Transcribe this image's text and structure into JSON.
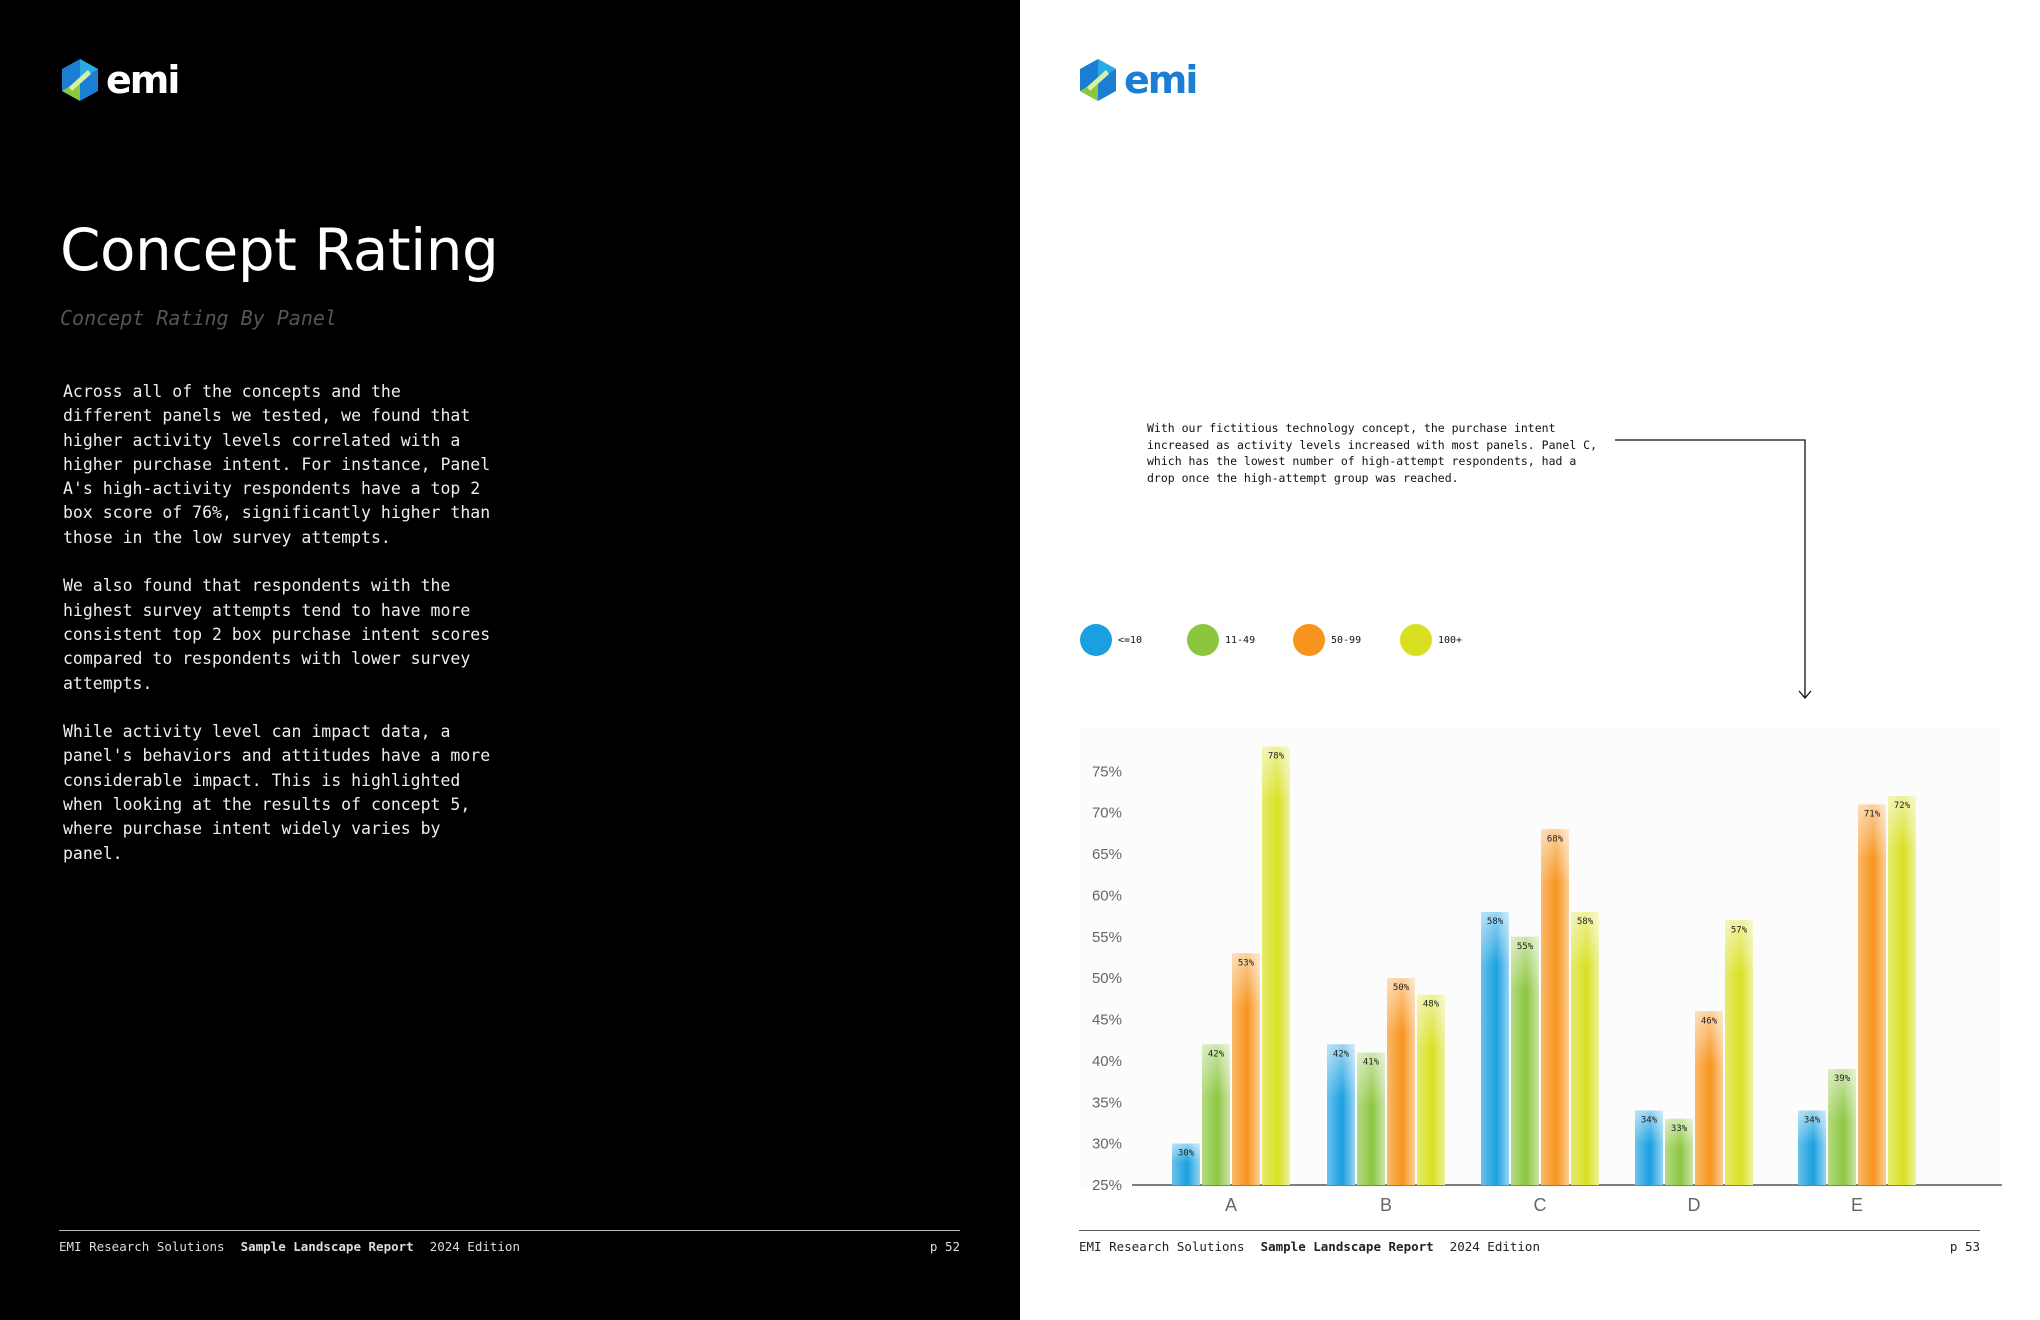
{
  "brand": {
    "name": "emi",
    "logo_icon": "emi-hexagon-logo"
  },
  "left": {
    "title": "Concept Rating",
    "subtitle": "Concept Rating By Panel",
    "paragraphs": [
      "Across all of the concepts and the different panels we tested, we found that higher activity levels correlated with a higher purchase intent. For instance, Panel A's high-activity respondents have a top 2 box score of 76%, significantly higher than those in the low survey attempts.",
      "We also found that respondents with the highest survey attempts tend to have more consistent top 2 box purchase intent scores compared to respondents with lower survey attempts.",
      "While activity level can impact data, a panel's behaviors and attitudes have a more considerable impact. This is highlighted when looking at the results of concept 5, where purchase intent widely varies by panel."
    ],
    "footer": {
      "company": "EMI Research Solutions",
      "report": "Sample Landscape Report",
      "edition": "2024 Edition",
      "page": "p 52"
    }
  },
  "right": {
    "annotation": "With our fictitious technology concept, the purchase intent increased as activity levels increased with most panels. Panel C, which has the lowest number of high-attempt respondents, had a drop once the high-attempt group was reached.",
    "footer": {
      "company": "EMI Research Solutions",
      "report": "Sample Landscape Report",
      "edition": "2024 Edition",
      "page": "p 53"
    }
  },
  "colors": {
    "blue": "#1aa0e0",
    "green": "#8cc63f",
    "orange": "#f7941d",
    "yellow": "#d9e021",
    "brand_blue": "#1a7fd4"
  },
  "chart_data": {
    "type": "bar",
    "title": "",
    "xlabel": "",
    "ylabel": "",
    "categories": [
      "A",
      "B",
      "C",
      "D",
      "E"
    ],
    "series": [
      {
        "name": "<=10",
        "color": "#1aa0e0",
        "values": [
          30,
          42,
          58,
          34,
          34
        ]
      },
      {
        "name": "11-49",
        "color": "#8cc63f",
        "values": [
          42,
          41,
          55,
          33,
          39
        ]
      },
      {
        "name": "50-99",
        "color": "#f7941d",
        "values": [
          53,
          50,
          68,
          46,
          71
        ]
      },
      {
        "name": "100+",
        "color": "#d9e021",
        "values": [
          78,
          48,
          58,
          57,
          72
        ]
      }
    ],
    "ylim": [
      25,
      80
    ],
    "yticks": [
      {
        "value": 25,
        "label": "25%"
      },
      {
        "value": 30,
        "label": "30%"
      },
      {
        "value": 35,
        "label": "35%"
      },
      {
        "value": 40,
        "label": "40%"
      },
      {
        "value": 45,
        "label": "45%"
      },
      {
        "value": 50,
        "label": "50%"
      },
      {
        "value": 55,
        "label": "55%"
      },
      {
        "value": 60,
        "label": "60%"
      },
      {
        "value": 65,
        "label": "65%"
      },
      {
        "value": 70,
        "label": "70%"
      },
      {
        "value": 75,
        "label": "75%"
      }
    ],
    "data_labels": [
      [
        "30%",
        "42%",
        "58%",
        "34%",
        "34%"
      ],
      [
        "42%",
        "41%",
        "55%",
        "33%",
        "39%"
      ],
      [
        "53%",
        "50%",
        "68%",
        "46%",
        "71%"
      ],
      [
        "78%",
        "48%",
        "58%",
        "57%",
        "72%"
      ]
    ],
    "legend_position": "top-left",
    "grid": false
  }
}
